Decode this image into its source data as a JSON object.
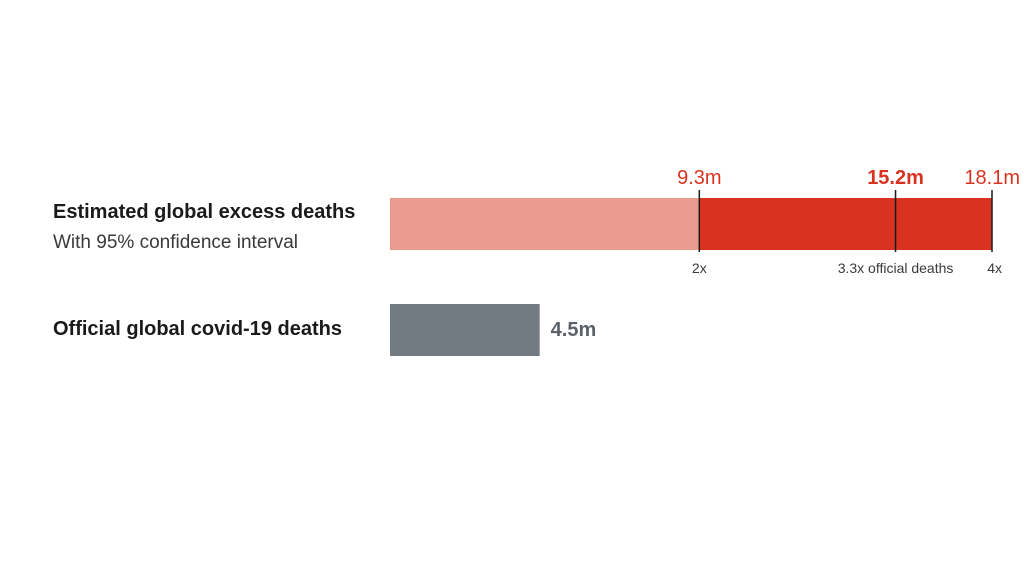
{
  "chart_data": {
    "type": "bar",
    "unit": "m",
    "rows": [
      {
        "label": "Estimated global excess deaths",
        "sublabel": "With 95% confidence interval",
        "lower": 9.3,
        "central": 15.2,
        "upper": 18.1,
        "value_labels": {
          "lower": "9.3m",
          "central": "15.2m",
          "upper": "18.1m"
        },
        "ticks": [
          {
            "value": 9.3,
            "label": "2x"
          },
          {
            "value": 15.2,
            "label": "3.3x official deaths"
          },
          {
            "value": 18.1,
            "label": "4x"
          }
        ],
        "colors": {
          "range_low": "#eb9a90",
          "range_high": "#d83320",
          "value_text": "#d83320"
        }
      },
      {
        "label": "Official global covid-19 deaths",
        "value": 4.5,
        "value_label": "4.5m",
        "colors": {
          "bar": "#737b82",
          "value_text": "#5a6168"
        }
      }
    ],
    "xlim": [
      0,
      18.1
    ]
  }
}
